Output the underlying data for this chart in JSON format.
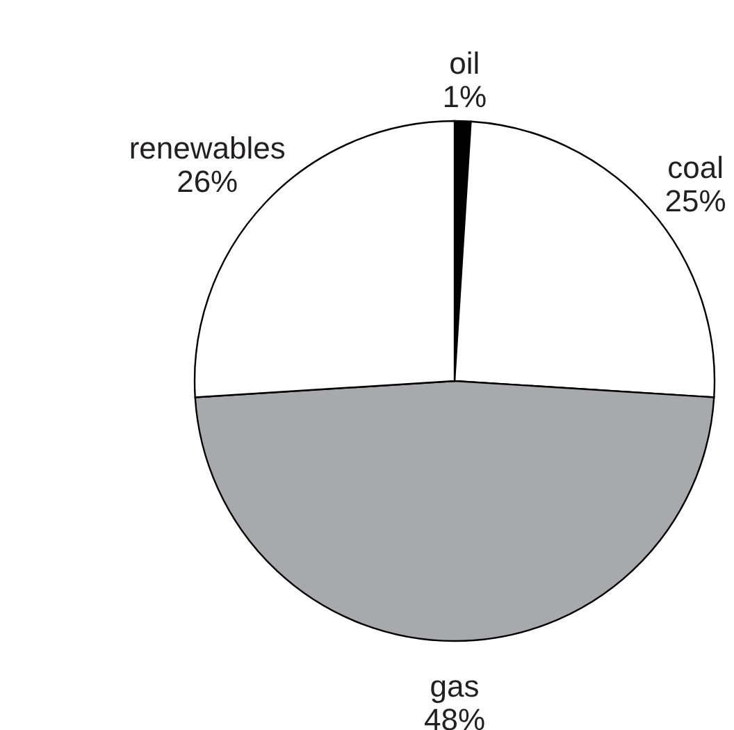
{
  "chart_data": {
    "type": "pie",
    "categories": [
      "oil",
      "coal",
      "gas",
      "renewables"
    ],
    "values": [
      1,
      25,
      48,
      26
    ],
    "value_labels": [
      "1%",
      "25%",
      "48%",
      "26%"
    ],
    "colors": [
      "#000000",
      "#ffffff",
      "#a7a9ac",
      "#ffffff"
    ]
  }
}
